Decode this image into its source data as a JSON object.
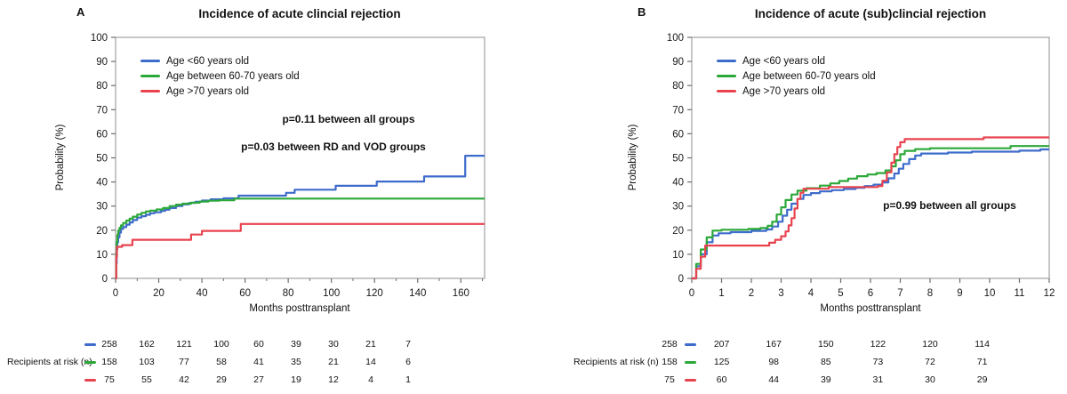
{
  "colors": {
    "blue": "#3E6CCB",
    "green": "#2BA838",
    "red": "#E8434F",
    "frame": "#A9A9A9",
    "tick": "#6E6E6E",
    "text": "#1a1a1a"
  },
  "chart_data": [
    {
      "type": "line",
      "step": true,
      "panel_label": "A",
      "title": "Incidence of acute clincial rejection",
      "xlabel": "Months posttransplant",
      "ylabel": "Probability (%)",
      "xlim": [
        0,
        171
      ],
      "ylim": [
        0,
        100
      ],
      "xticks": [
        0,
        20,
        40,
        60,
        80,
        100,
        120,
        140,
        160
      ],
      "xticks_minor": [
        10,
        30,
        50,
        70,
        90,
        110,
        130,
        150,
        170
      ],
      "yticks": [
        0,
        10,
        20,
        30,
        40,
        50,
        60,
        70,
        80,
        90,
        100
      ],
      "grid": false,
      "legend_position": "top-left-inside",
      "annotations": [
        "p=0.11 between all groups",
        "p=0.03 between RD and VOD groups"
      ],
      "series": [
        {
          "name": "Age <60 years old",
          "color": "#3E6CCB",
          "points": [
            [
              0,
              0
            ],
            [
              0.3,
              6
            ],
            [
              0.5,
              12
            ],
            [
              0.8,
              15
            ],
            [
              1.2,
              17
            ],
            [
              1.8,
              19
            ],
            [
              2.5,
              20.5
            ],
            [
              3.5,
              21.3
            ],
            [
              5,
              22.3
            ],
            [
              6.5,
              23.2
            ],
            [
              8,
              24.2
            ],
            [
              10,
              25.2
            ],
            [
              12,
              25.8
            ],
            [
              14,
              26.4
            ],
            [
              16,
              27
            ],
            [
              18,
              27.4
            ],
            [
              21,
              28
            ],
            [
              23,
              28.5
            ],
            [
              25,
              29.2
            ],
            [
              28,
              30
            ],
            [
              31,
              30.7
            ],
            [
              34,
              31.3
            ],
            [
              37,
              31.8
            ],
            [
              40,
              32.3
            ],
            [
              44,
              32.8
            ],
            [
              50,
              33.2
            ],
            [
              57,
              34.3
            ],
            [
              79,
              35.5
            ],
            [
              83,
              36.8
            ],
            [
              102,
              38.4
            ],
            [
              121,
              40.2
            ],
            [
              143,
              42.3
            ],
            [
              162,
              50.9
            ],
            [
              171,
              50.9
            ]
          ]
        },
        {
          "name": "Age between 60-70 years old",
          "color": "#2BA838",
          "points": [
            [
              0,
              0
            ],
            [
              0.3,
              9
            ],
            [
              0.5,
              15
            ],
            [
              0.8,
              18
            ],
            [
              1.2,
              19.8
            ],
            [
              1.8,
              21
            ],
            [
              2.5,
              22
            ],
            [
              3.5,
              23
            ],
            [
              5,
              24
            ],
            [
              6.5,
              24.8
            ],
            [
              8,
              25.6
            ],
            [
              10,
              26.5
            ],
            [
              12,
              27.2
            ],
            [
              14,
              27.8
            ],
            [
              16,
              28.1
            ],
            [
              19,
              28.6
            ],
            [
              22,
              29.2
            ],
            [
              25,
              30
            ],
            [
              28,
              30.6
            ],
            [
              31,
              31
            ],
            [
              35,
              31.4
            ],
            [
              39,
              31.9
            ],
            [
              43,
              32.2
            ],
            [
              48,
              32.4
            ],
            [
              55,
              33.1
            ],
            [
              171,
              33.1
            ]
          ]
        },
        {
          "name": "Age >70 years old",
          "color": "#E8434F",
          "points": [
            [
              0,
              0
            ],
            [
              0.3,
              9
            ],
            [
              0.6,
              13.1
            ],
            [
              3,
              13.8
            ],
            [
              7.8,
              16
            ],
            [
              35,
              18.2
            ],
            [
              40,
              19.7
            ],
            [
              58,
              22.6
            ],
            [
              171,
              22.6
            ]
          ]
        }
      ],
      "risk_table": {
        "label": "Recipients at risk (n)",
        "rows": [
          {
            "series": "Age <60 years old",
            "color": "#3E6CCB",
            "values": [
              258,
              162,
              121,
              100,
              60,
              39,
              30,
              21,
              7
            ]
          },
          {
            "series": "Age between 60-70 years old",
            "color": "#2BA838",
            "values": [
              158,
              103,
              77,
              58,
              41,
              35,
              21,
              14,
              6
            ]
          },
          {
            "series": "Age >70 years old",
            "color": "#E8434F",
            "values": [
              75,
              55,
              42,
              29,
              27,
              19,
              12,
              4,
              1
            ]
          }
        ]
      }
    },
    {
      "type": "line",
      "step": true,
      "panel_label": "B",
      "title": "Incidence of acute (sub)clincial rejection",
      "xlabel": "Months posttransplant",
      "ylabel": "Probability (%)",
      "xlim": [
        0,
        12
      ],
      "ylim": [
        0,
        100
      ],
      "xticks": [
        0,
        1,
        2,
        3,
        4,
        5,
        6,
        7,
        8,
        9,
        10,
        11,
        12
      ],
      "xticks_minor": [],
      "yticks": [
        0,
        10,
        20,
        30,
        40,
        50,
        60,
        70,
        80,
        90,
        100
      ],
      "grid": false,
      "legend_position": "top-left-inside",
      "annotations": [
        "p=0.99 between all groups"
      ],
      "series": [
        {
          "name": "Age <60 years old",
          "color": "#3E6CCB",
          "points": [
            [
              0,
              0
            ],
            [
              0.15,
              5
            ],
            [
              0.3,
              10
            ],
            [
              0.5,
              15
            ],
            [
              0.7,
              17.8
            ],
            [
              0.9,
              18.7
            ],
            [
              1.3,
              19.2
            ],
            [
              2,
              19.7
            ],
            [
              2.5,
              20.3
            ],
            [
              2.7,
              21.5
            ],
            [
              2.9,
              23.5
            ],
            [
              3.05,
              26
            ],
            [
              3.2,
              28.5
            ],
            [
              3.35,
              31
            ],
            [
              3.55,
              33
            ],
            [
              3.75,
              34.6
            ],
            [
              4,
              35.4
            ],
            [
              4.3,
              36.1
            ],
            [
              4.7,
              36.6
            ],
            [
              5.1,
              37.1
            ],
            [
              5.5,
              37.6
            ],
            [
              5.8,
              38.3
            ],
            [
              6.1,
              38.9
            ],
            [
              6.4,
              39.8
            ],
            [
              6.6,
              41.5
            ],
            [
              6.8,
              43.5
            ],
            [
              6.95,
              45.5
            ],
            [
              7.1,
              47.5
            ],
            [
              7.3,
              49.5
            ],
            [
              7.5,
              51
            ],
            [
              7.7,
              51.8
            ],
            [
              8.6,
              52.2
            ],
            [
              9.4,
              52.6
            ],
            [
              11,
              53
            ],
            [
              11.7,
              53.5
            ],
            [
              12,
              53.5
            ]
          ]
        },
        {
          "name": "Age between 60-70 years old",
          "color": "#2BA838",
          "points": [
            [
              0,
              0
            ],
            [
              0.15,
              6
            ],
            [
              0.3,
              12
            ],
            [
              0.5,
              17
            ],
            [
              0.7,
              19.8
            ],
            [
              1,
              20.2
            ],
            [
              1.9,
              20.5
            ],
            [
              2.3,
              20.9
            ],
            [
              2.55,
              21.8
            ],
            [
              2.7,
              23.5
            ],
            [
              2.85,
              26.5
            ],
            [
              3,
              29.5
            ],
            [
              3.15,
              32.5
            ],
            [
              3.35,
              34.8
            ],
            [
              3.55,
              36.4
            ],
            [
              3.85,
              37.4
            ],
            [
              4.3,
              38.5
            ],
            [
              4.65,
              39.4
            ],
            [
              4.95,
              40.4
            ],
            [
              5.25,
              41.4
            ],
            [
              5.55,
              42.4
            ],
            [
              5.9,
              43.1
            ],
            [
              6.2,
              43.7
            ],
            [
              6.5,
              44.8
            ],
            [
              6.7,
              46.5
            ],
            [
              6.85,
              49
            ],
            [
              7,
              51.5
            ],
            [
              7.15,
              52.9
            ],
            [
              7.5,
              53.6
            ],
            [
              8,
              54
            ],
            [
              10.7,
              54.9
            ],
            [
              12,
              54.9
            ]
          ]
        },
        {
          "name": "Age >70 years old",
          "color": "#E8434F",
          "points": [
            [
              0,
              0
            ],
            [
              0.15,
              4
            ],
            [
              0.3,
              9
            ],
            [
              0.45,
              13.6
            ],
            [
              2.6,
              14.8
            ],
            [
              2.8,
              16
            ],
            [
              3,
              17.5
            ],
            [
              3.15,
              19.5
            ],
            [
              3.25,
              22
            ],
            [
              3.35,
              25
            ],
            [
              3.45,
              29
            ],
            [
              3.55,
              33
            ],
            [
              3.65,
              35.5
            ],
            [
              3.75,
              37.2
            ],
            [
              4.6,
              37.9
            ],
            [
              6.25,
              38.3
            ],
            [
              6.4,
              40.5
            ],
            [
              6.55,
              44
            ],
            [
              6.7,
              48
            ],
            [
              6.8,
              51.5
            ],
            [
              6.9,
              54.5
            ],
            [
              7,
              56.5
            ],
            [
              7.15,
              57.8
            ],
            [
              9.8,
              58.5
            ],
            [
              12,
              58.5
            ]
          ]
        }
      ],
      "risk_table": {
        "label": "Recipients at risk (n)",
        "rows": [
          {
            "series": "Age <60 years old",
            "color": "#3E6CCB",
            "values": [
              258,
              207,
              167,
              150,
              122,
              120,
              114
            ]
          },
          {
            "series": "Age between 60-70 years old",
            "color": "#2BA838",
            "values": [
              158,
              125,
              98,
              85,
              73,
              72,
              71
            ]
          },
          {
            "series": "Age >70 years old",
            "color": "#E8434F",
            "values": [
              75,
              60,
              44,
              39,
              31,
              30,
              29
            ]
          }
        ]
      }
    }
  ]
}
